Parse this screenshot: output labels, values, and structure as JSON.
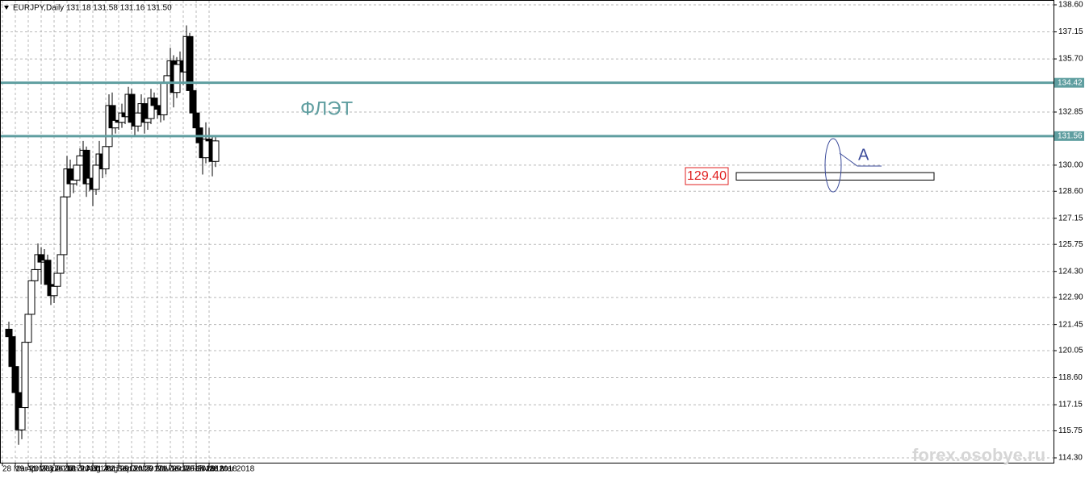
{
  "chart_data": {
    "type": "candlestick",
    "title": "EURJPY,Daily  131.18 131.58 131.16 131.50",
    "categories": [
      "28 Mar 2017",
      null,
      null,
      null,
      "19 Apr 2017",
      null,
      null,
      null,
      "11 May 2017",
      null,
      null,
      null,
      "2 Jun 2017",
      null,
      null,
      null,
      "26 Jun 2017",
      null,
      null,
      null,
      "18 Jul 2017",
      null,
      null,
      null,
      "9 Aug 2017",
      null,
      null,
      null,
      "31 Aug 2017",
      null,
      null,
      null,
      "22 Sep 2017",
      null,
      null,
      null,
      "16 Oct 2017",
      null,
      null,
      null,
      "7 Nov 2017",
      null,
      null,
      null,
      "29 Nov 2017",
      null,
      null,
      null,
      "21 Dec 2017",
      null,
      null,
      null,
      "16 Jan 2018",
      null,
      null,
      null,
      "7 Feb 2018",
      null,
      null,
      null,
      "1 Mar 2018",
      null,
      null,
      null,
      "23 Mar 2018"
    ],
    "open": [
      121.2,
      120.8,
      119.2,
      117.8,
      115.8,
      117.0,
      120.5,
      122.0,
      123.8,
      124.4,
      125.2,
      124.8,
      124.9,
      123.6,
      123.0,
      123.5,
      124.2,
      125.2,
      128.3,
      129.8,
      129.0,
      129.2,
      130.0,
      130.5,
      130.8,
      129.0,
      129.3,
      128.7,
      130.0,
      130.6,
      129.8,
      131.0,
      133.2,
      132.0,
      132.4,
      132.3,
      132.8,
      132.6,
      133.8,
      132.3,
      132.1,
      132.8,
      133.3,
      132.3,
      132.5,
      133.6,
      133.2,
      133.0,
      132.7,
      134.4,
      134.8,
      135.6,
      133.9,
      135.4,
      135.6,
      135.0,
      136.9,
      134.0,
      132.8,
      132.0,
      131.2,
      130.4,
      131.4,
      131.3,
      130.2
    ],
    "high": [
      121.6,
      121.1,
      119.5,
      118.1,
      117.5,
      120.9,
      122.4,
      124.2,
      124.9,
      125.8,
      125.6,
      125.5,
      125.2,
      124.0,
      123.9,
      124.6,
      125.6,
      128.7,
      130.5,
      130.3,
      129.8,
      130.5,
      130.9,
      131.3,
      131.0,
      129.9,
      129.6,
      130.4,
      131.3,
      130.9,
      131.5,
      133.8,
      133.9,
      132.9,
      132.8,
      133.3,
      133.2,
      134.2,
      134.1,
      132.6,
      133.2,
      133.8,
      133.6,
      132.9,
      134.1,
      133.9,
      133.6,
      133.3,
      134.8,
      135.2,
      136.3,
      135.9,
      135.8,
      136.1,
      136.0,
      137.5,
      137.1,
      134.3,
      133.2,
      132.5,
      131.5,
      132.3,
      132.0,
      131.6,
      131.6
    ],
    "low": [
      120.3,
      118.8,
      117.3,
      115.0,
      115.3,
      116.7,
      120.1,
      121.6,
      123.2,
      123.8,
      123.6,
      124.0,
      123.1,
      122.5,
      122.6,
      123.0,
      123.8,
      125.0,
      128.0,
      128.6,
      128.5,
      128.9,
      129.5,
      130.0,
      128.3,
      128.6,
      127.8,
      128.4,
      129.7,
      129.3,
      129.5,
      130.8,
      131.6,
      131.7,
      131.9,
      132.0,
      132.2,
      132.3,
      131.9,
      131.6,
      131.8,
      132.5,
      131.7,
      131.9,
      132.2,
      132.8,
      132.5,
      132.3,
      132.4,
      133.9,
      134.5,
      133.1,
      133.6,
      135.0,
      134.3,
      134.7,
      133.7,
      132.3,
      131.5,
      130.8,
      129.5,
      130.1,
      130.7,
      129.4,
      129.9
    ],
    "close": [
      120.8,
      119.2,
      117.8,
      115.8,
      117.0,
      120.5,
      122.0,
      123.8,
      124.4,
      125.2,
      124.8,
      124.9,
      123.6,
      123.0,
      123.5,
      124.2,
      125.2,
      128.3,
      129.8,
      129.0,
      129.2,
      130.0,
      130.5,
      130.8,
      129.0,
      129.3,
      128.7,
      130.0,
      130.6,
      129.8,
      131.0,
      133.2,
      132.0,
      132.4,
      132.3,
      132.8,
      132.6,
      133.8,
      132.3,
      132.1,
      132.8,
      133.3,
      132.3,
      132.5,
      133.6,
      133.2,
      133.0,
      132.7,
      134.4,
      134.8,
      135.6,
      133.9,
      135.4,
      135.6,
      135.0,
      136.9,
      134.0,
      132.8,
      132.0,
      131.2,
      130.4,
      131.4,
      131.3,
      130.2,
      131.3
    ],
    "up_color": "#ffffff",
    "down_color": "#000000",
    "ylim": [
      114.04,
      138.86
    ],
    "yticks": [
      {
        "value": 138.6,
        "label": "138.60"
      },
      137.15,
      {
        "value": 135.7,
        "label": "135.70"
      },
      132.85,
      {
        "value": 130,
        "label": "130.00"
      },
      {
        "value": 128.6,
        "label": "128.60"
      },
      127.15,
      125.75,
      {
        "value": 124.3,
        "label": "124.30"
      },
      {
        "value": 122.9,
        "label": "122.90"
      },
      121.45,
      120.05,
      {
        "value": 118.6,
        "label": "118.60"
      },
      117.15,
      115.75,
      {
        "value": 114.3,
        "label": "114.30"
      }
    ],
    "grid": true,
    "hlines": [
      {
        "value": 134.42,
        "color": "#5f9ea0"
      },
      {
        "value": 131.56,
        "color": "#5f9ea0"
      }
    ],
    "zone": [
      129.2,
      129.6
    ],
    "annotations": {
      "flat": "ФЛЭТ",
      "level": "129.40",
      "point": "A",
      "watermark": "forex.osobye.ru"
    }
  }
}
